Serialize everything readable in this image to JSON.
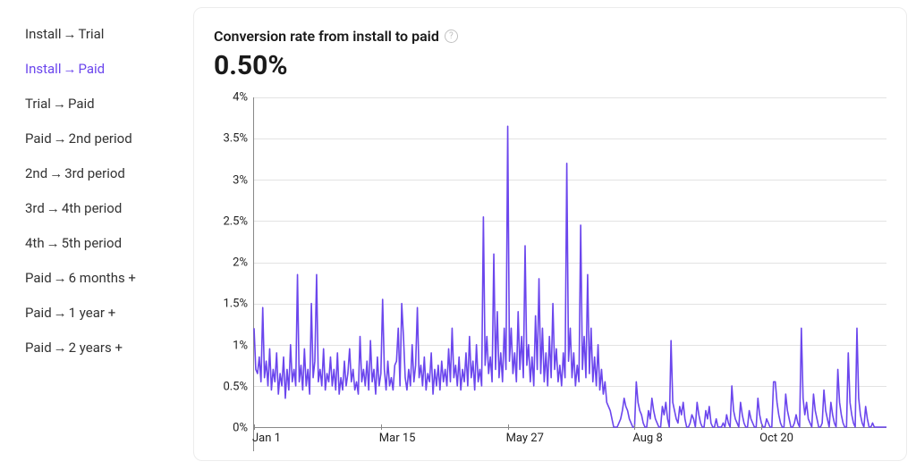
{
  "colors": {
    "accent": "#6b46ed",
    "text": "#1a1a1a",
    "muted_text": "#333333",
    "grid": "#e3e3e3",
    "axis": "#888888",
    "card_border": "#ececec",
    "bg": "#ffffff",
    "help_icon": "#c0c0c0"
  },
  "sidebar": {
    "items": [
      {
        "label_pre": "Install",
        "label_post": "Trial",
        "active": false
      },
      {
        "label_pre": "Install",
        "label_post": "Paid",
        "active": true
      },
      {
        "label_pre": "Trial",
        "label_post": "Paid",
        "active": false
      },
      {
        "label_pre": "Paid",
        "label_post": "2nd period",
        "active": false
      },
      {
        "label_pre": "2nd",
        "label_post": "3rd period",
        "active": false
      },
      {
        "label_pre": "3rd",
        "label_post": "4th period",
        "active": false
      },
      {
        "label_pre": "4th",
        "label_post": "5th period",
        "active": false
      },
      {
        "label_pre": "Paid",
        "label_post": "6 months +",
        "active": false
      },
      {
        "label_pre": "Paid",
        "label_post": "1 year +",
        "active": false
      },
      {
        "label_pre": "Paid",
        "label_post": "2 years +",
        "active": false
      }
    ],
    "arrow_glyph": "→",
    "font_size": 15
  },
  "card": {
    "title": "Conversion rate from install to paid",
    "help_glyph": "?",
    "value": "0.50%"
  },
  "chart": {
    "type": "line",
    "line_color": "#6b46ed",
    "line_width": 1.6,
    "background_color": "#ffffff",
    "grid_color": "#e3e3e3",
    "axis_color": "#888888",
    "ylim": [
      0,
      4
    ],
    "ytick_step": 0.5,
    "y_ticks": [
      {
        "v": 0,
        "label": "0%"
      },
      {
        "v": 0.5,
        "label": "0.5%"
      },
      {
        "v": 1,
        "label": "1%"
      },
      {
        "v": 1.5,
        "label": "1.5%"
      },
      {
        "v": 2,
        "label": "2%"
      },
      {
        "v": 2.5,
        "label": "2.5%"
      },
      {
        "v": 3,
        "label": "3%"
      },
      {
        "v": 3.5,
        "label": "3.5%"
      },
      {
        "v": 4,
        "label": "4%"
      }
    ],
    "x_n": 365,
    "x_ticks": [
      {
        "i": 0,
        "label": "Jan 1"
      },
      {
        "i": 73,
        "label": "Mar 15"
      },
      {
        "i": 146,
        "label": "May 27"
      },
      {
        "i": 219,
        "label": "Aug 8"
      },
      {
        "i": 292,
        "label": "Oct 20"
      }
    ],
    "values": [
      1.2,
      0.7,
      0.65,
      0.85,
      0.55,
      1.45,
      0.6,
      0.8,
      0.5,
      0.95,
      0.45,
      0.7,
      0.55,
      0.9,
      0.4,
      0.65,
      0.5,
      0.85,
      0.35,
      0.7,
      0.45,
      1.0,
      0.55,
      0.7,
      0.5,
      1.85,
      0.55,
      0.75,
      0.45,
      0.95,
      0.5,
      0.7,
      0.4,
      1.5,
      0.6,
      0.8,
      1.85,
      0.55,
      0.7,
      0.5,
      0.95,
      0.45,
      0.65,
      0.55,
      0.85,
      0.5,
      0.7,
      0.45,
      0.9,
      0.4,
      0.6,
      0.45,
      0.8,
      0.5,
      0.65,
      0.95,
      0.55,
      0.7,
      0.45,
      0.55,
      0.4,
      1.1,
      0.55,
      0.7,
      0.5,
      0.8,
      0.45,
      1.05,
      0.55,
      0.7,
      0.4,
      0.85,
      0.5,
      0.65,
      1.55,
      0.7,
      0.45,
      0.8,
      0.5,
      0.6,
      0.45,
      0.75,
      0.8,
      1.2,
      0.5,
      1.5,
      1.1,
      0.6,
      0.45,
      0.7,
      0.5,
      1.0,
      0.55,
      0.75,
      1.45,
      0.6,
      0.75,
      0.5,
      0.85,
      0.45,
      0.65,
      0.55,
      0.9,
      0.4,
      0.7,
      0.5,
      0.75,
      0.45,
      0.8,
      0.55,
      0.7,
      0.5,
      0.95,
      0.55,
      1.2,
      0.6,
      0.75,
      0.5,
      0.85,
      0.45,
      0.7,
      0.55,
      0.9,
      0.5,
      1.1,
      0.6,
      0.8,
      0.45,
      1.0,
      0.55,
      0.7,
      0.5,
      2.55,
      0.75,
      1.1,
      0.65,
      0.85,
      0.55,
      2.1,
      0.7,
      1.4,
      0.6,
      0.9,
      0.55,
      1.2,
      0.7,
      3.65,
      0.8,
      1.2,
      0.65,
      0.9,
      0.55,
      1.4,
      0.7,
      1.1,
      0.6,
      2.2,
      0.75,
      1.0,
      0.55,
      0.85,
      0.5,
      1.35,
      0.7,
      1.8,
      0.65,
      1.2,
      0.55,
      0.9,
      0.5,
      1.1,
      0.6,
      1.5,
      0.7,
      0.95,
      0.55,
      0.75,
      0.5,
      0.9,
      0.6,
      3.2,
      0.8,
      1.2,
      0.6,
      0.9,
      0.5,
      0.75,
      0.55,
      2.45,
      0.7,
      1.1,
      0.6,
      1.85,
      0.65,
      1.2,
      0.55,
      0.85,
      0.5,
      1.0,
      0.45,
      0.7,
      0.4,
      0.55,
      0.3,
      0.25,
      0.2,
      0.1,
      0.0,
      0.0,
      0.0,
      0.05,
      0.1,
      0.2,
      0.35,
      0.25,
      0.2,
      0.1,
      0.05,
      0.0,
      0.0,
      0.55,
      0.3,
      0.2,
      0.15,
      0.05,
      0.0,
      0.0,
      0.2,
      0.1,
      0.35,
      0.2,
      0.1,
      0.05,
      0.0,
      0.0,
      0.25,
      0.15,
      0.3,
      0.1,
      0.0,
      1.05,
      0.3,
      0.2,
      0.1,
      0.05,
      0.25,
      0.15,
      0.3,
      0.1,
      0.0,
      0.0,
      0.05,
      0.15,
      0.1,
      0.0,
      0.3,
      0.15,
      0.05,
      0.0,
      0.0,
      0.2,
      0.1,
      0.25,
      0.05,
      0.0,
      0.0,
      0.1,
      0.0,
      0.0,
      0.0,
      0.05,
      0.0,
      0.15,
      0.05,
      0.0,
      0.5,
      0.2,
      0.1,
      0.05,
      0.0,
      0.3,
      0.15,
      0.05,
      0.0,
      0.0,
      0.2,
      0.1,
      0.05,
      0.0,
      0.0,
      0.35,
      0.15,
      0.05,
      0.0,
      0.0,
      0.1,
      0.05,
      0.0,
      0.0,
      0.55,
      0.55,
      0.3,
      0.15,
      0.05,
      0.0,
      0.0,
      0.4,
      0.2,
      0.1,
      0.0,
      0.0,
      0.05,
      0.15,
      0.05,
      0.0,
      1.2,
      0.35,
      0.15,
      0.3,
      0.1,
      0.05,
      0.0,
      0.4,
      0.2,
      0.1,
      0.0,
      0.0,
      0.05,
      0.45,
      0.2,
      0.1,
      0.0,
      0.3,
      0.15,
      0.05,
      0.0,
      0.7,
      0.3,
      0.15,
      0.05,
      0.0,
      0.0,
      0.9,
      0.3,
      0.15,
      0.05,
      0.0,
      1.2,
      0.35,
      0.15,
      0.05,
      0.0,
      0.25,
      0.1,
      0.0,
      0.0,
      0.05,
      0.0,
      0.0,
      0.0,
      0.0,
      0.0,
      0.0,
      0.0,
      0.0
    ]
  }
}
